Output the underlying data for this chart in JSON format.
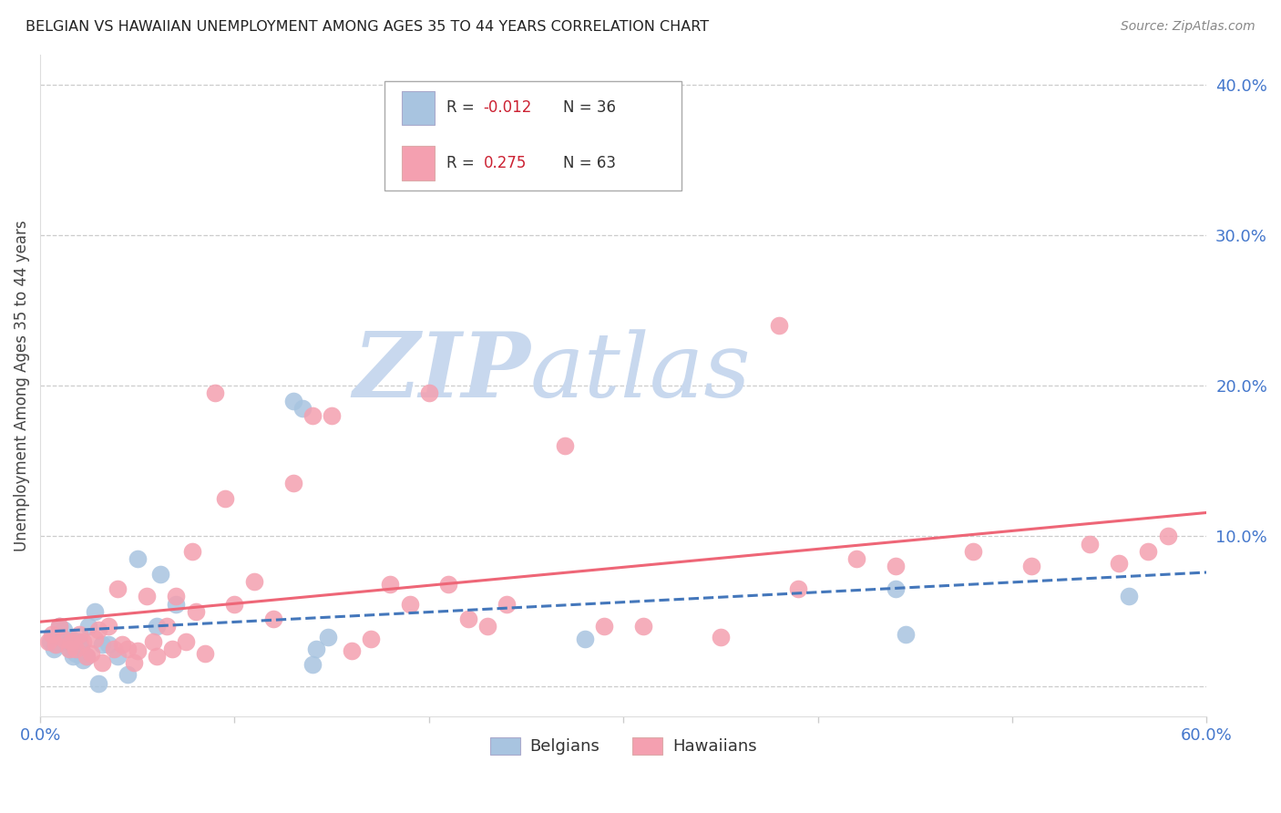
{
  "title": "BELGIAN VS HAWAIIAN UNEMPLOYMENT AMONG AGES 35 TO 44 YEARS CORRELATION CHART",
  "source": "Source: ZipAtlas.com",
  "ylabel": "Unemployment Among Ages 35 to 44 years",
  "xlim": [
    0.0,
    0.6
  ],
  "ylim": [
    -0.02,
    0.42
  ],
  "grid_color": "#cccccc",
  "background_color": "#ffffff",
  "belgian_color": "#a8c4e0",
  "hawaiian_color": "#f4a0b0",
  "belgian_line_color": "#4477bb",
  "hawaiian_line_color": "#ee6677",
  "watermark_zip": "ZIP",
  "watermark_atlas": "atlas",
  "watermark_color_zip": "#c8d8ee",
  "watermark_color_atlas": "#c8d8ee",
  "legend_R_belgian": "-0.012",
  "legend_N_belgian": "36",
  "legend_R_hawaiian": "0.275",
  "legend_N_hawaiian": "63",
  "tick_color": "#4477cc",
  "title_color": "#222222",
  "source_color": "#888888",
  "ylabel_color": "#444444",
  "belgian_x": [
    0.005,
    0.007,
    0.008,
    0.01,
    0.01,
    0.012,
    0.013,
    0.015,
    0.016,
    0.017,
    0.018,
    0.019,
    0.02,
    0.021,
    0.022,
    0.024,
    0.025,
    0.028,
    0.03,
    0.032,
    0.035,
    0.04,
    0.045,
    0.05,
    0.06,
    0.062,
    0.07,
    0.13,
    0.135,
    0.14,
    0.142,
    0.148,
    0.28,
    0.44,
    0.445,
    0.56
  ],
  "belgian_y": [
    0.03,
    0.025,
    0.028,
    0.035,
    0.04,
    0.038,
    0.03,
    0.025,
    0.032,
    0.02,
    0.022,
    0.028,
    0.03,
    0.025,
    0.018,
    0.02,
    0.04,
    0.05,
    0.002,
    0.028,
    0.028,
    0.02,
    0.008,
    0.085,
    0.04,
    0.075,
    0.055,
    0.19,
    0.185,
    0.015,
    0.025,
    0.033,
    0.032,
    0.065,
    0.035,
    0.06
  ],
  "hawaiian_x": [
    0.004,
    0.006,
    0.008,
    0.01,
    0.012,
    0.015,
    0.016,
    0.018,
    0.02,
    0.022,
    0.024,
    0.026,
    0.028,
    0.03,
    0.032,
    0.035,
    0.038,
    0.04,
    0.042,
    0.045,
    0.048,
    0.05,
    0.055,
    0.058,
    0.06,
    0.065,
    0.068,
    0.07,
    0.075,
    0.078,
    0.08,
    0.085,
    0.09,
    0.095,
    0.1,
    0.11,
    0.12,
    0.13,
    0.14,
    0.15,
    0.16,
    0.17,
    0.18,
    0.19,
    0.2,
    0.21,
    0.22,
    0.23,
    0.24,
    0.27,
    0.29,
    0.31,
    0.35,
    0.38,
    0.39,
    0.42,
    0.44,
    0.48,
    0.51,
    0.54,
    0.555,
    0.57,
    0.58
  ],
  "hawaiian_y": [
    0.03,
    0.035,
    0.028,
    0.04,
    0.032,
    0.025,
    0.03,
    0.025,
    0.035,
    0.03,
    0.02,
    0.022,
    0.032,
    0.038,
    0.016,
    0.04,
    0.025,
    0.065,
    0.028,
    0.025,
    0.016,
    0.024,
    0.06,
    0.03,
    0.02,
    0.04,
    0.025,
    0.06,
    0.03,
    0.09,
    0.05,
    0.022,
    0.195,
    0.125,
    0.055,
    0.07,
    0.045,
    0.135,
    0.18,
    0.18,
    0.024,
    0.032,
    0.068,
    0.055,
    0.195,
    0.068,
    0.045,
    0.04,
    0.055,
    0.16,
    0.04,
    0.04,
    0.033,
    0.24,
    0.065,
    0.085,
    0.08,
    0.09,
    0.08,
    0.095,
    0.082,
    0.09,
    0.1
  ]
}
